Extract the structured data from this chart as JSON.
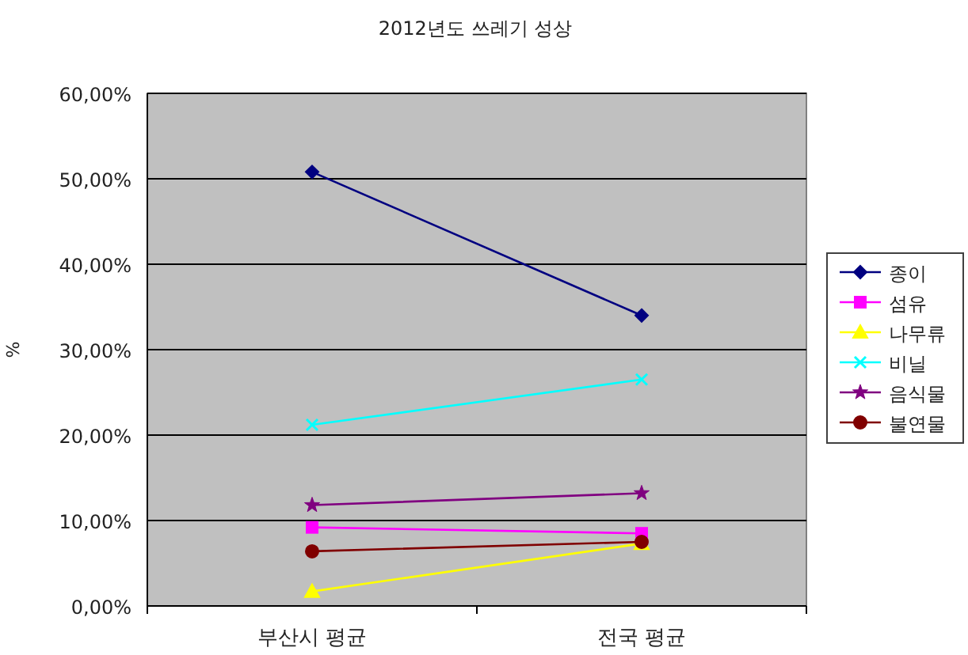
{
  "chart_data": {
    "type": "line",
    "title": "2012년도 쓰레기 성상",
    "ylabel": "%",
    "categories": [
      "부산시 평균",
      "전국 평균"
    ],
    "series": [
      {
        "name": "종이",
        "color": "#000080",
        "marker": "diamond",
        "values": [
          50.8,
          34.0
        ]
      },
      {
        "name": "섬유",
        "color": "#ff00ff",
        "marker": "square",
        "values": [
          9.2,
          8.5
        ]
      },
      {
        "name": "나무류",
        "color": "#ffff00",
        "marker": "triangle",
        "values": [
          1.7,
          7.3
        ]
      },
      {
        "name": "비닐",
        "color": "#00ffff",
        "marker": "cross",
        "values": [
          21.2,
          26.5
        ]
      },
      {
        "name": "음식물",
        "color": "#800080",
        "marker": "star",
        "values": [
          11.8,
          13.2
        ]
      },
      {
        "name": "불연물",
        "color": "#800000",
        "marker": "circle",
        "values": [
          6.4,
          7.5
        ]
      }
    ],
    "ylim": [
      0,
      60
    ],
    "yticks": [
      {
        "value": 0,
        "label": "0,00%"
      },
      {
        "value": 10,
        "label": "10,00%"
      },
      {
        "value": 20,
        "label": "20,00%"
      },
      {
        "value": 30,
        "label": "30,00%"
      },
      {
        "value": 40,
        "label": "40,00%"
      },
      {
        "value": 50,
        "label": "50,00%"
      },
      {
        "value": 60,
        "label": "60,00%"
      }
    ],
    "grid": "y",
    "legend": "right"
  }
}
